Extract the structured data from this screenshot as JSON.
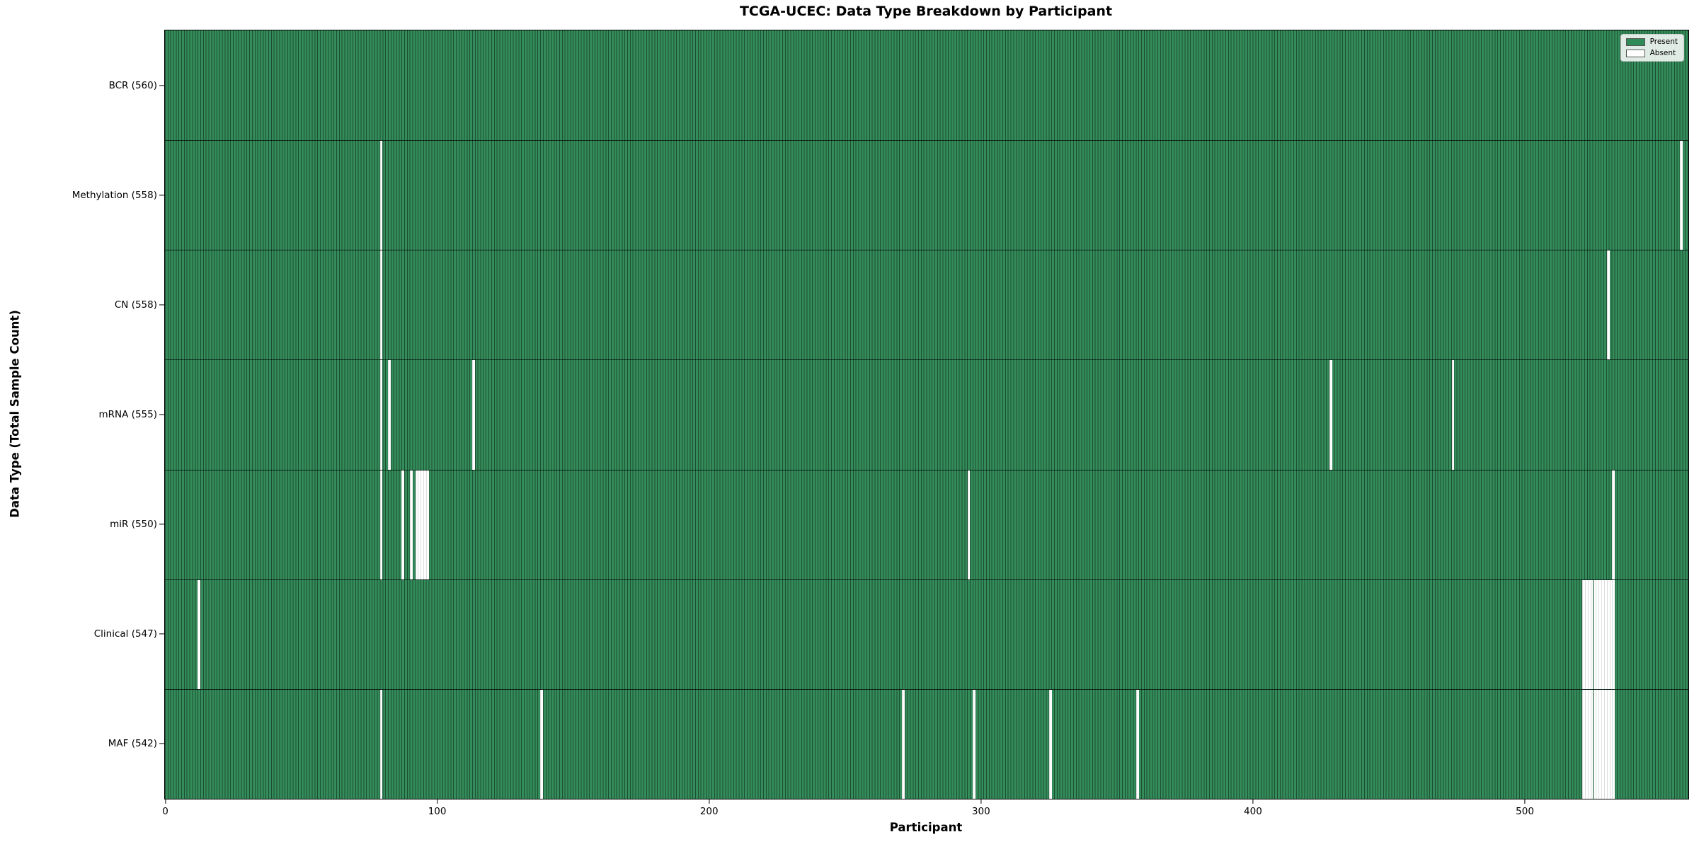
{
  "title": "TCGA-UCEC: Data Type Breakdown by Participant",
  "xlabel": "Participant",
  "ylabel": "Data Type (Total Sample Count)",
  "legend": {
    "present_label": "Present",
    "absent_label": "Absent"
  },
  "colors": {
    "present_fill": "#2e8b57",
    "present_edge": "#1d4e33",
    "absent_fill": "#ffffff",
    "axis": "#000000"
  },
  "chart_data": {
    "type": "heatmap",
    "title": "TCGA-UCEC: Data Type Breakdown by Participant",
    "xlabel": "Participant",
    "ylabel": "Data Type (Total Sample Count)",
    "legend": [
      "Present",
      "Absent"
    ],
    "legend_position": "upper right",
    "total_participants": 560,
    "x_range": [
      0,
      560
    ],
    "x_ticks": [
      0,
      100,
      200,
      300,
      400,
      500
    ],
    "rows": [
      {
        "data_type": "BCR",
        "label": "BCR (560)",
        "present_count": 560,
        "absent_participants": []
      },
      {
        "data_type": "Methylation",
        "label": "Methylation (558)",
        "present_count": 558,
        "absent_participants": [
          79,
          557
        ]
      },
      {
        "data_type": "CN",
        "label": "CN (558)",
        "present_count": 558,
        "absent_participants": [
          79,
          530
        ]
      },
      {
        "data_type": "mRNA",
        "label": "mRNA (555)",
        "present_count": 555,
        "absent_participants": [
          79,
          82,
          113,
          428,
          473
        ]
      },
      {
        "data_type": "miR",
        "label": "miR (550)",
        "present_count": 550,
        "absent_participants": [
          79,
          87,
          90,
          92,
          93,
          94,
          95,
          96,
          295,
          532
        ]
      },
      {
        "data_type": "Clinical",
        "label": "Clinical (547)",
        "present_count": 547,
        "absent_participants": [
          12,
          521,
          522,
          523,
          524,
          525,
          526,
          527,
          528,
          529,
          530,
          531,
          532
        ]
      },
      {
        "data_type": "MAF",
        "label": "MAF (542)",
        "present_count": 542,
        "absent_participants": [
          79,
          138,
          271,
          297,
          325,
          357,
          521,
          522,
          523,
          524,
          525,
          526,
          527,
          528,
          529,
          530,
          531,
          532
        ]
      }
    ]
  }
}
